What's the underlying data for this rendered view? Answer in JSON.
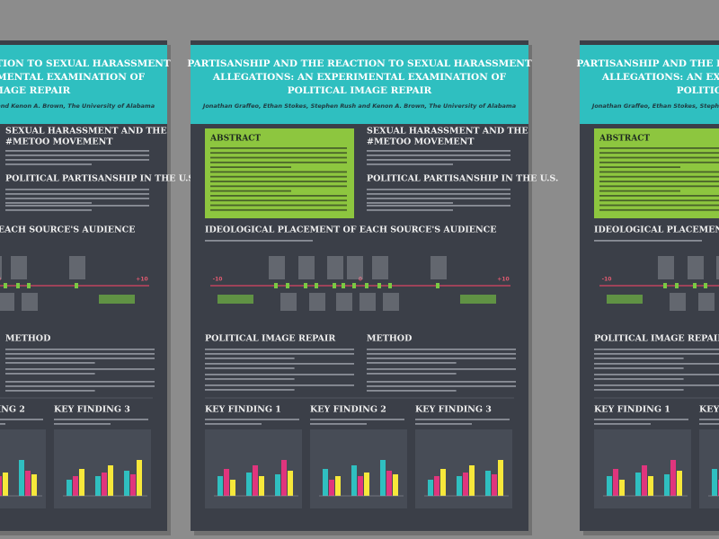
{
  "poster": {
    "title_lines": [
      "PARTISANSHIP AND THE REACTION TO SEXUAL HARASSMENT",
      "ALLEGATIONS: AN EXPERIMENTAL EXAMINATION OF",
      "POLITICAL IMAGE REPAIR"
    ],
    "authors": "Jonathan Graffeo, Ethan Stokes, Stephen Rush and Kenon A. Brown, The University of Alabama",
    "abstract_heading": "ABSTRACT",
    "metoo_heading": [
      "SEXUAL HARASSMENT AND THE",
      "#METOO MOVEMENT"
    ],
    "partisanship_heading": "POLITICAL PARTISANSHIP IN THE U.S.",
    "placement_heading": "IDEOLOGICAL PLACEMENT OF EACH SOURCE'S AUDIENCE",
    "scale_labels": [
      "-10",
      "0",
      "+10"
    ],
    "image_repair_heading": "POLITICAL IMAGE REPAIR",
    "method_heading": "METHOD",
    "key_findings": [
      "KEY FINDING 1",
      "KEY FINDING 2",
      "KEY FINDING 3"
    ]
  }
}
